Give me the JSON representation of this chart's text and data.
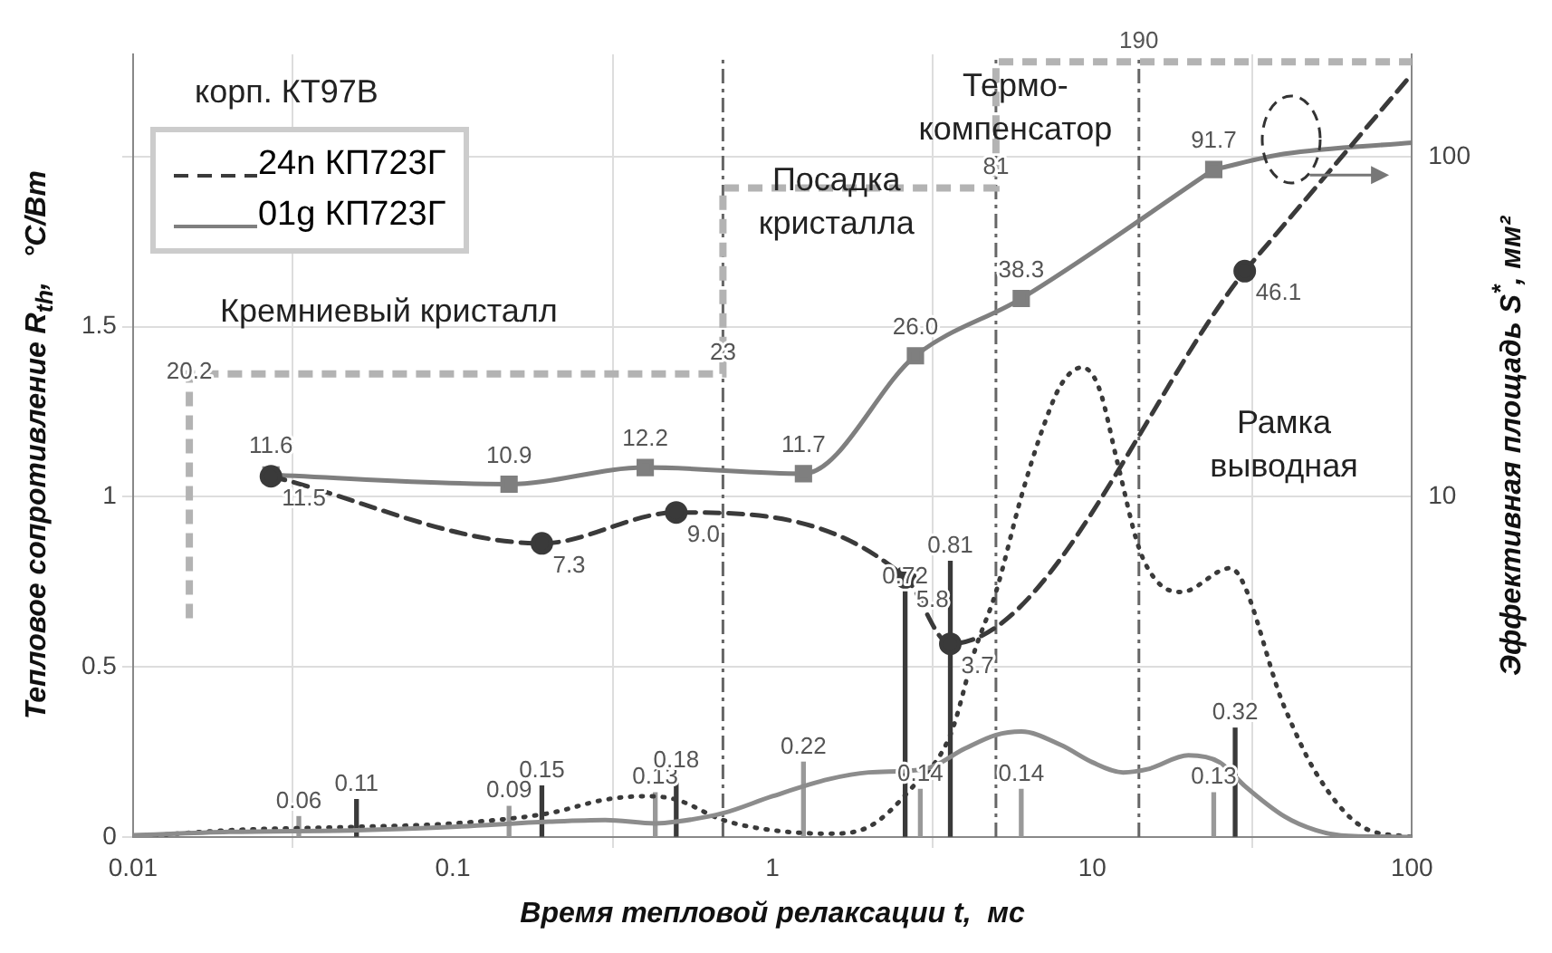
{
  "chart_data": {
    "type": "line",
    "xlabel": "Время тепловой релаксации t,  мс",
    "ylabel": "Эффективная площадь S$^{*}$, мм²",
    "y2label": "Тепловое сопротивление R$_{th}$,   °C/Вт",
    "log": "xy",
    "xlim": [
      0.01,
      100
    ],
    "xticks": [
      0.01,
      0.1,
      1,
      10,
      100
    ],
    "ylim": [
      1,
      200
    ],
    "yticks": [
      10,
      100
    ],
    "y2lim": [
      0,
      2.3
    ],
    "y2ticks": [
      0,
      0.5,
      1,
      1.5,
      {
        "value": 2,
        "label": null
      }
    ],
    "grid": true,
    "legend": "top left",
    "series": [
      {
        "name": "24n КП723Г",
        "color": "#3a3a3a",
        "line_style": "dashed",
        "marker": "circle",
        "x": [
          0.027,
          0.19,
          0.5,
          2.6,
          3.6,
          30
        ],
        "values": [
          11.5,
          7.3,
          9.0,
          5.8,
          3.7,
          46.1
        ],
        "value_labels": [
          "11.5",
          "7.3",
          "9.0",
          "5.8",
          "3.7",
          "46.1"
        ]
      },
      {
        "name": "01g КП723Г",
        "color": "#7f7f7f",
        "line_style": "solid",
        "marker": "square",
        "x": [
          0.027,
          0.15,
          0.4,
          1.25,
          2.8,
          6,
          24
        ],
        "values": [
          11.6,
          10.9,
          12.2,
          11.7,
          26.0,
          38.3,
          91.7
        ],
        "value_labels": [
          "11.6",
          "10.9",
          "12.2",
          "11.7",
          "26.0",
          "38.3",
          "91.7"
        ]
      },
      {
        "color": "#3a3a3a",
        "line_style": "dashed",
        "marker": "none",
        "x": [
          30,
          100
        ],
        "values": [
          46.1,
          175
        ]
      },
      {
        "color": "#7f7f7f",
        "line_style": "solid",
        "marker": "none",
        "x": [
          24,
          40,
          100
        ],
        "values": [
          91.7,
          102,
          110
        ]
      },
      {
        "axis": "y2",
        "color": "#8c8c8c",
        "line_style": "solid",
        "marker": "none",
        "x": [
          0.01,
          0.02,
          0.05,
          0.1,
          0.2,
          0.3,
          0.43,
          0.5,
          0.7,
          1,
          1.5,
          2,
          3,
          4,
          5,
          6,
          8,
          10,
          12.5,
          15,
          20,
          25,
          30,
          40,
          50,
          60,
          100
        ],
        "values": [
          0.005,
          0.015,
          0.02,
          0.03,
          0.045,
          0.05,
          0.04,
          0.045,
          0.07,
          0.12,
          0.17,
          0.19,
          0.2,
          0.26,
          0.3,
          0.31,
          0.27,
          0.22,
          0.19,
          0.2,
          0.24,
          0.22,
          0.15,
          0.06,
          0.02,
          0.005,
          0
        ]
      },
      {
        "axis": "y2",
        "color": "#3a3a3a",
        "line_style": "dotted",
        "marker": "none",
        "x": [
          0.01,
          0.02,
          0.05,
          0.1,
          0.2,
          0.3,
          0.4,
          0.5,
          0.7,
          1,
          1.5,
          2,
          2.7,
          3.6,
          4.3,
          5,
          6,
          7,
          8,
          9.3,
          10.5,
          12,
          14,
          16,
          19,
          27,
          40,
          50,
          70,
          100
        ],
        "values": [
          0,
          0.02,
          0.03,
          0.04,
          0.07,
          0.11,
          0.12,
          0.11,
          0.05,
          0.02,
          0.01,
          0.03,
          0.14,
          0.3,
          0.55,
          0.72,
          1.0,
          1.2,
          1.33,
          1.38,
          1.32,
          1.1,
          0.85,
          0.75,
          0.72,
          0.79,
          0.38,
          0.19,
          0.03,
          0
        ]
      },
      {
        "type": "bar",
        "axis": "y2",
        "color": "#999999",
        "x": [
          0.033,
          0.15,
          0.43,
          1.25,
          2.9,
          6,
          24
        ],
        "values": [
          0.06,
          0.09,
          0.13,
          0.22,
          0.14,
          0.14,
          0.13
        ],
        "value_labels": [
          "0.06",
          "0.09",
          "0.13",
          "0.22",
          "0.14",
          "0.14",
          "0.13"
        ]
      },
      {
        "type": "bar",
        "axis": "y2",
        "color": "#3a3a3a",
        "x": [
          0.05,
          0.19,
          0.5,
          2.6,
          3.6,
          28
        ],
        "values": [
          0.11,
          0.15,
          0.18,
          0.72,
          0.81,
          0.32
        ],
        "value_labels": [
          "0.11",
          "0.15",
          "0.18",
          "0.72",
          "0.81",
          "0.32"
        ]
      },
      {
        "type": "step",
        "color": "#b3b3b3",
        "line_style": "dashed",
        "marker": "none",
        "x": [
          0.015,
          0.015,
          0.7,
          5,
          14,
          100
        ],
        "values": [
          4.4,
          20.2,
          23,
          81,
          190,
          190
        ],
        "value_labels": [
          null,
          "20.2",
          "23",
          "81",
          "190",
          null
        ]
      }
    ],
    "ref_lines": [
      {
        "axis": "x",
        "value": 0.7,
        "color": "#666666"
      },
      {
        "axis": "x",
        "value": 5,
        "color": "#666666"
      },
      {
        "axis": "x",
        "value": 14,
        "color": "#666666"
      }
    ],
    "annotations": [
      "корп. КТ97В",
      "Кремниевый кристалл",
      "Посадка\nкристалла",
      "Термо-\nкомпенсатор",
      "Рамка\nвыводная"
    ]
  }
}
